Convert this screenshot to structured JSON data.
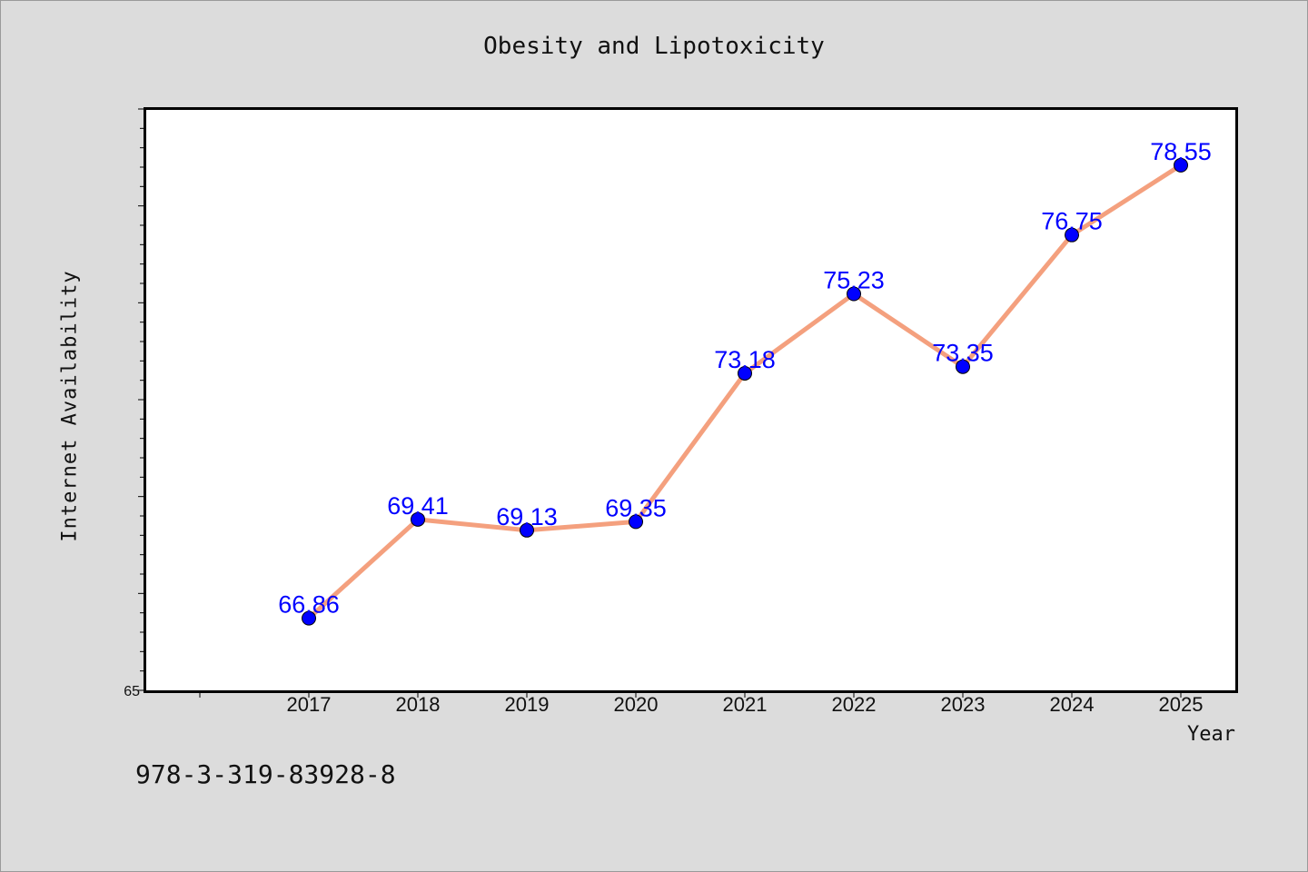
{
  "chart_data": {
    "type": "line",
    "title": "Obesity and Lipotoxicity",
    "xlabel": "Year",
    "ylabel": "Internet Availability",
    "categories": [
      "2017",
      "2018",
      "2019",
      "2020",
      "2021",
      "2022",
      "2023",
      "2024",
      "2025"
    ],
    "series": [
      {
        "values": [
          66.86,
          69.41,
          69.13,
          69.35,
          73.18,
          75.23,
          73.35,
          76.75,
          78.55
        ],
        "labels": [
          "66.86",
          "69.41",
          "69.13",
          "69.35",
          "73.18",
          "75.23",
          "73.35",
          "76.75",
          "78.55"
        ],
        "line_color": "#f4a07e",
        "marker_color": "#0000ff"
      }
    ],
    "ylim": [
      65,
      80
    ],
    "yticks_labeled": [
      "65"
    ],
    "grid": false,
    "plot_background": "#ffffff",
    "background": "#dcdcdc"
  },
  "footer": {
    "isbn": "978-3-319-83928-8"
  }
}
